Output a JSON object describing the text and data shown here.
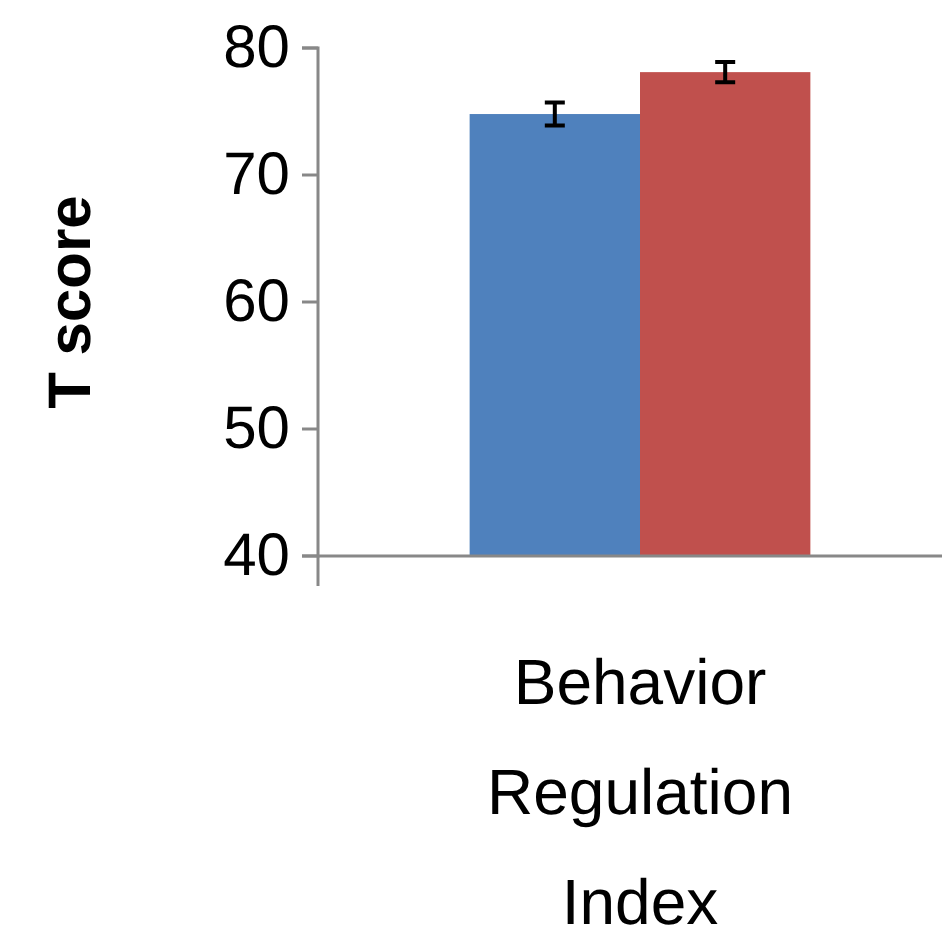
{
  "chart_data": {
    "type": "bar",
    "ylabel": "T score",
    "categories": [
      "Behavior Regulation Index"
    ],
    "series": [
      {
        "color": "#4f81bd",
        "values": [
          74.8
        ],
        "errors": [
          0.9
        ]
      },
      {
        "color": "#c0504d",
        "values": [
          78.1
        ],
        "errors": [
          0.8
        ]
      }
    ],
    "ylim": [
      40,
      80
    ],
    "yticks": [
      40,
      50,
      60,
      70,
      80
    ],
    "grid": false
  }
}
